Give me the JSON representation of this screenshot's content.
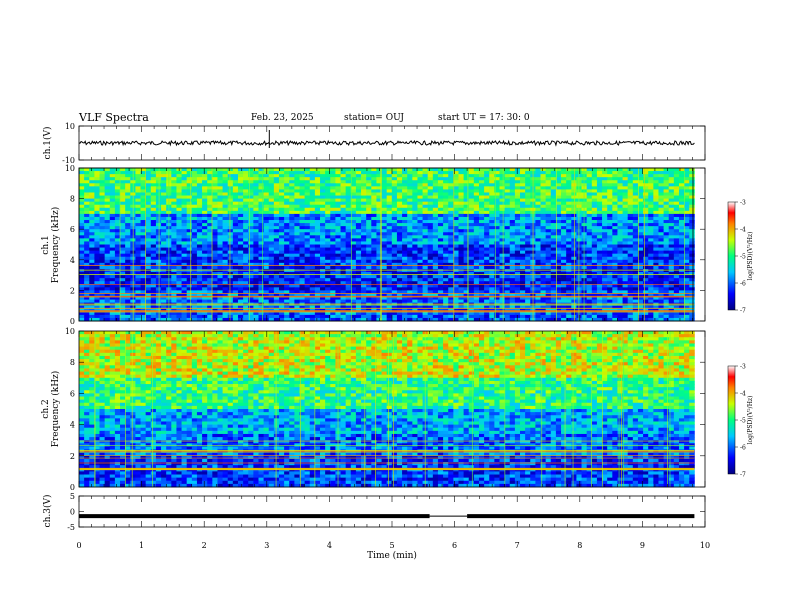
{
  "header": {
    "title": "VLF Spectra",
    "date": "Feb. 23, 2025",
    "station": "station= OUJ",
    "start": "start  UT  =   17: 30: 0"
  },
  "chart_data": [
    {
      "type": "line",
      "panel": "ch1-waveform",
      "ylabel": "ch.1(V)",
      "ylim": [
        -10,
        10
      ],
      "yticks": [
        "10",
        "-10"
      ],
      "x_range_min": [
        0,
        9.83
      ],
      "approx_level": 0.0,
      "color": "#000000"
    },
    {
      "type": "heatmap",
      "panel": "ch1-spectrogram",
      "ylabel": "ch.1\nFrequency  (kHz)",
      "ylim": [
        0,
        10
      ],
      "yticks": [
        "0",
        "2",
        "4",
        "6",
        "8",
        "10"
      ],
      "colorbar": {
        "label": "log(PSD)(V²/Hz)",
        "range": [
          -7,
          -3
        ],
        "ticks": [
          "-3",
          "-4",
          "-5",
          "-6",
          "-7"
        ]
      },
      "band_levels": [
        {
          "f_min": 0,
          "f_max": 2,
          "level": -6.0
        },
        {
          "f_min": 2,
          "f_max": 3.5,
          "level": -6.3
        },
        {
          "f_min": 3.5,
          "f_max": 5,
          "level": -6.2
        },
        {
          "f_min": 5,
          "f_max": 7,
          "level": -5.8
        },
        {
          "f_min": 7,
          "f_max": 10,
          "level": -4.9
        }
      ]
    },
    {
      "type": "heatmap",
      "panel": "ch2-spectrogram",
      "ylabel": "ch.2\nFrequency  (kHz)",
      "ylim": [
        0,
        10
      ],
      "yticks": [
        "0",
        "2",
        "4",
        "6",
        "8",
        "10"
      ],
      "colorbar": {
        "label": "log(PSD)(V²/Hz)",
        "range": [
          -7,
          -3
        ],
        "ticks": [
          "-3",
          "-4",
          "-5",
          "-6",
          "-7"
        ]
      },
      "band_levels": [
        {
          "f_min": 0,
          "f_max": 2,
          "level": -6.2
        },
        {
          "f_min": 2,
          "f_max": 3.5,
          "level": -6.0
        },
        {
          "f_min": 3.5,
          "f_max": 5,
          "level": -5.7
        },
        {
          "f_min": 5,
          "f_max": 7,
          "level": -5.0
        },
        {
          "f_min": 7,
          "f_max": 10,
          "level": -4.4
        }
      ]
    },
    {
      "type": "line",
      "panel": "ch3-waveform",
      "ylabel": "ch.3(V)",
      "ylim": [
        -5,
        5
      ],
      "yticks": [
        "5",
        "0",
        "-5"
      ],
      "x_range_min": [
        0,
        9.83
      ],
      "approx_level": -1.5,
      "gap_min": [
        5.6,
        6.2
      ],
      "xlabel": "Time  (min)",
      "xlim": [
        0,
        10
      ],
      "xticks": [
        "0",
        "1",
        "2",
        "3",
        "4",
        "5",
        "6",
        "7",
        "8",
        "9",
        "10"
      ],
      "color": "#000000"
    }
  ]
}
